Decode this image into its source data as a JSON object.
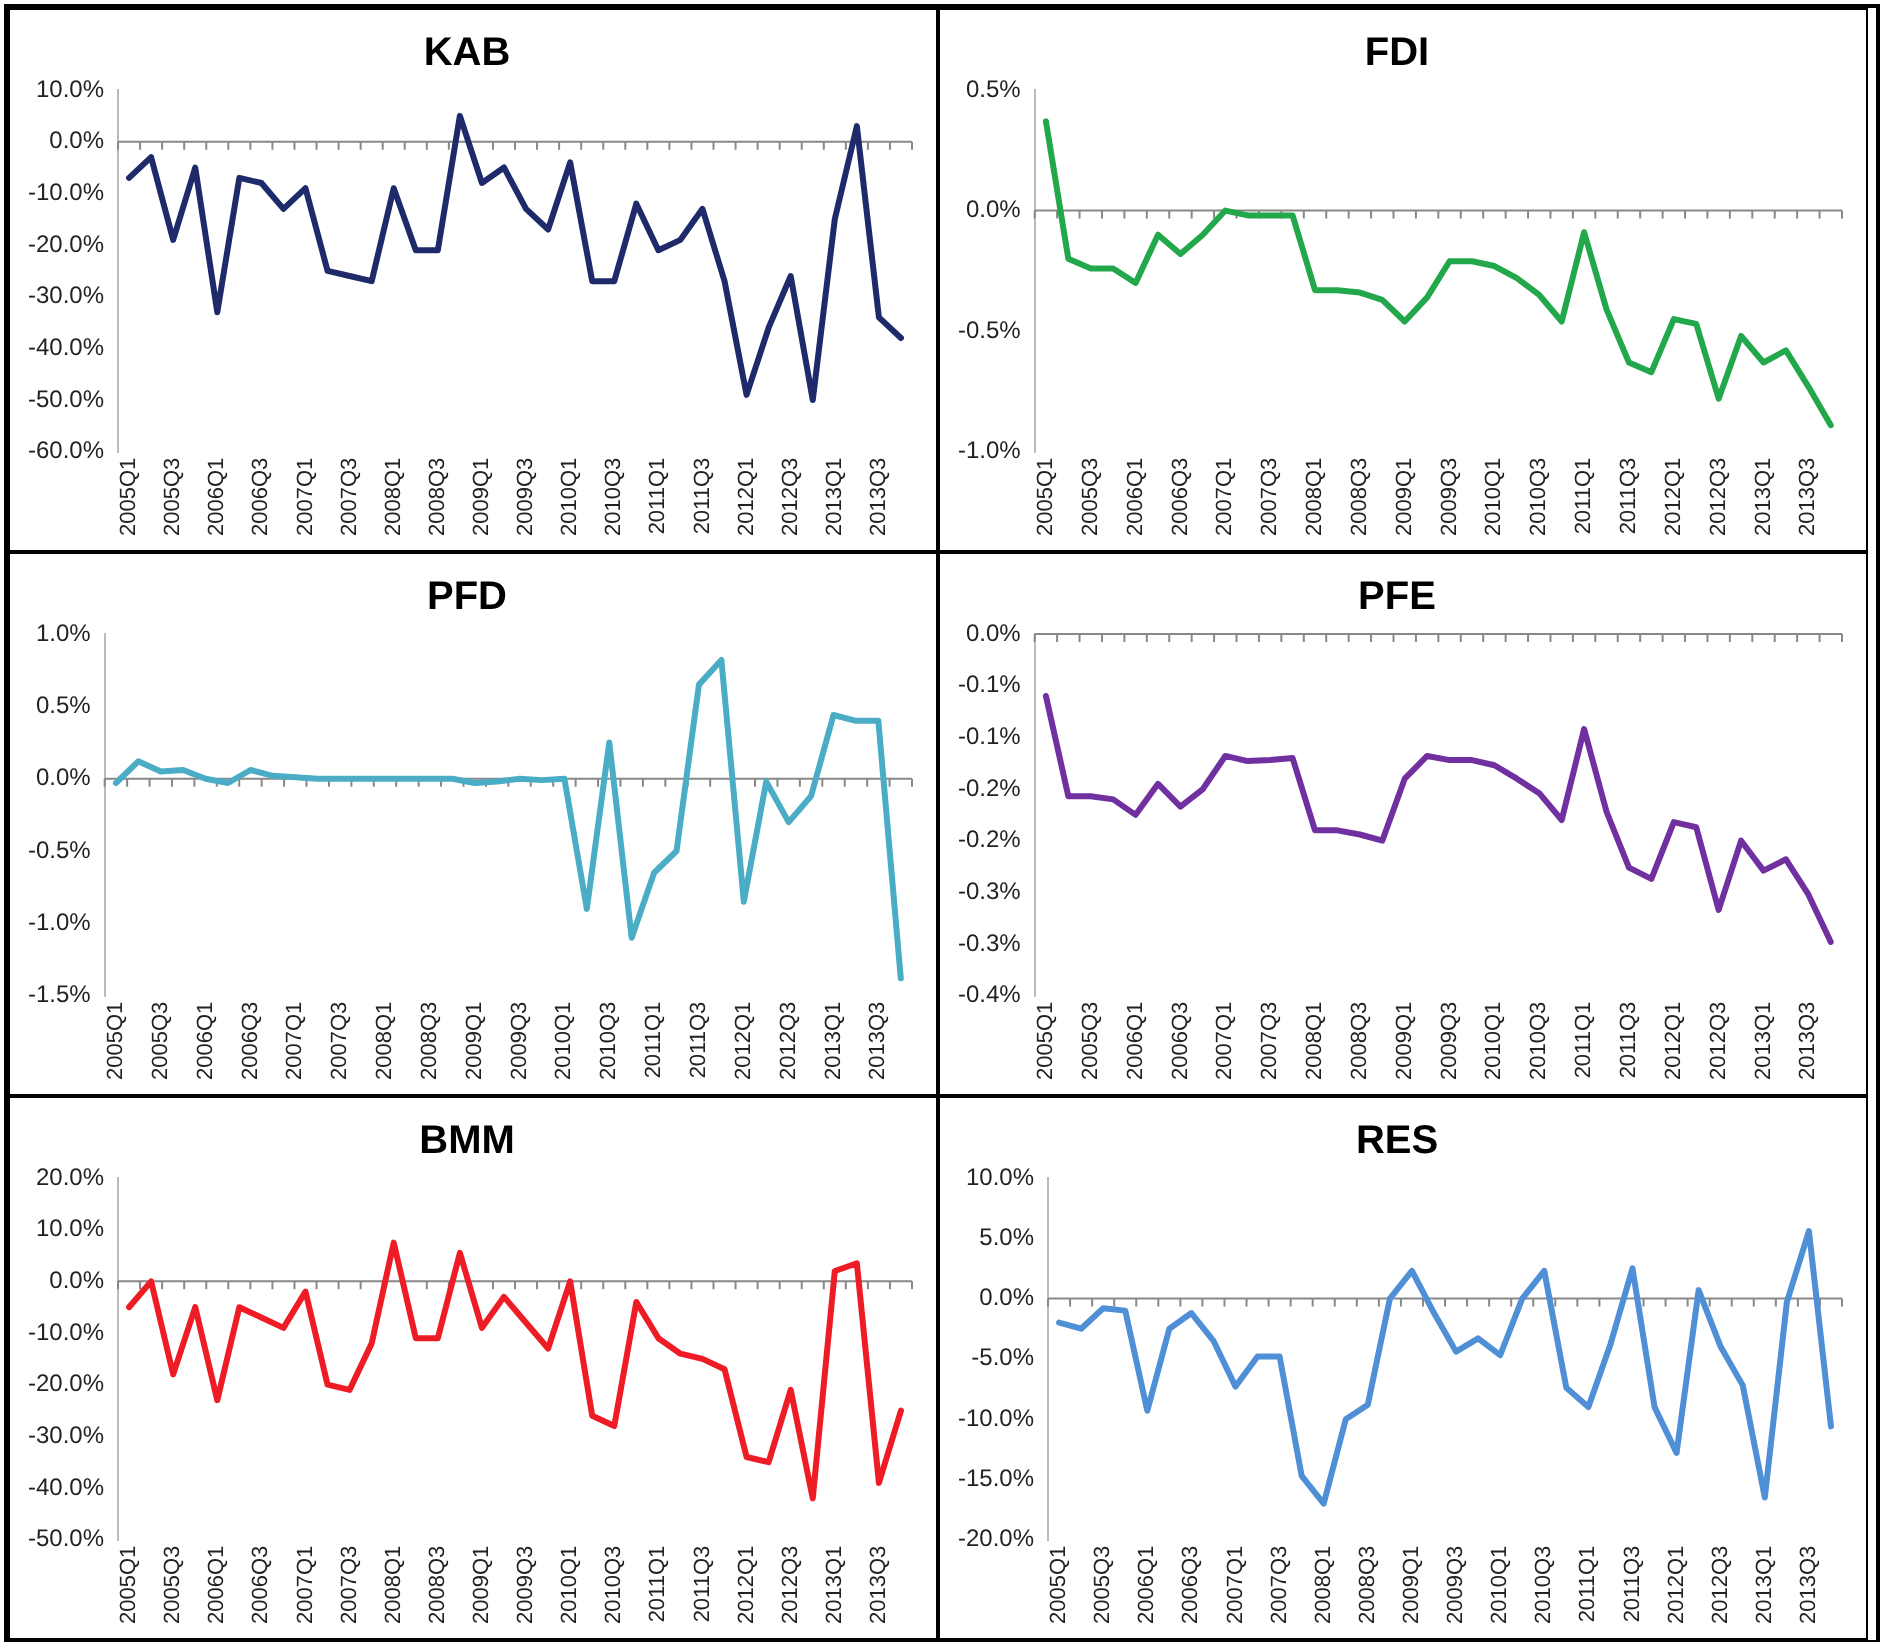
{
  "chart_data": [
    {
      "type": "line",
      "title": "KAB",
      "categories": [
        "2005Q1",
        null,
        "2005Q3",
        null,
        "2006Q1",
        null,
        "2006Q3",
        null,
        "2007Q1",
        null,
        "2007Q3",
        null,
        "2008Q1",
        null,
        "2008Q3",
        null,
        "2009Q1",
        null,
        "2009Q3",
        null,
        "2010Q1",
        null,
        "2010Q3",
        null,
        "2011Q1",
        null,
        "2011Q3",
        null,
        "2012Q1",
        null,
        "2012Q3",
        null,
        "2013Q1",
        null,
        "2013Q3",
        null
      ],
      "series": [
        {
          "color": "#1f2a6b",
          "values": [
            -7,
            -3,
            -19,
            -5,
            -33,
            -7,
            -8,
            -13,
            -9,
            -25,
            -26,
            -27,
            -9,
            -21,
            -21,
            5,
            -8,
            -5,
            -13,
            -17,
            -4,
            -27,
            -27,
            -12,
            -21,
            -19,
            -13,
            -27,
            -49,
            -36,
            -26,
            -50,
            -15,
            3,
            -34,
            -38
          ]
        }
      ],
      "ref_lines": [
        {
          "axis": "y",
          "value": 0,
          "color": "#888888"
        }
      ],
      "ylim": [
        -60,
        10
      ],
      "yticks": [
        {
          "value": -60,
          "label": "-60.0%"
        },
        {
          "value": -50,
          "label": "-50.0%"
        },
        {
          "value": -40,
          "label": "-40.0%"
        },
        {
          "value": -30,
          "label": "-30.0%"
        },
        {
          "value": -20,
          "label": "-20.0%"
        },
        {
          "value": -10,
          "label": "-10.0%"
        },
        {
          "value": 0,
          "label": "0.0%"
        },
        {
          "value": 10,
          "label": "10.0%"
        }
      ],
      "grid": false,
      "legend": false,
      "marker": "none"
    },
    {
      "type": "line",
      "title": "FDI",
      "categories": [
        "2005Q1",
        null,
        "2005Q3",
        null,
        "2006Q1",
        null,
        "2006Q3",
        null,
        "2007Q1",
        null,
        "2007Q3",
        null,
        "2008Q1",
        null,
        "2008Q3",
        null,
        "2009Q1",
        null,
        "2009Q3",
        null,
        "2010Q1",
        null,
        "2010Q3",
        null,
        "2011Q1",
        null,
        "2011Q3",
        null,
        "2012Q1",
        null,
        "2012Q3",
        null,
        "2013Q1",
        null,
        "2013Q3",
        null
      ],
      "series": [
        {
          "color": "#22a84a",
          "values": [
            0.37,
            -0.2,
            -0.24,
            -0.24,
            -0.3,
            -0.1,
            -0.18,
            -0.1,
            0,
            -0.02,
            -0.02,
            -0.02,
            -0.33,
            -0.33,
            -0.34,
            -0.37,
            -0.46,
            -0.36,
            -0.21,
            -0.21,
            -0.23,
            -0.28,
            -0.35,
            -0.46,
            -0.09,
            -0.41,
            -0.63,
            -0.67,
            -0.45,
            -0.47,
            -0.78,
            -0.52,
            -0.63,
            -0.58,
            -0.73,
            -0.89
          ]
        }
      ],
      "ref_lines": [
        {
          "axis": "y",
          "value": 0,
          "color": "#888888"
        }
      ],
      "ylim": [
        -1,
        0.5
      ],
      "yticks": [
        {
          "value": -1,
          "label": "-1.0%"
        },
        {
          "value": -0.5,
          "label": "-0.5%"
        },
        {
          "value": 0,
          "label": "0.0%"
        },
        {
          "value": 0.5,
          "label": "0.5%"
        }
      ],
      "grid": false,
      "legend": false,
      "marker": "none"
    },
    {
      "type": "line",
      "title": "PFD",
      "categories": [
        "2005Q1",
        null,
        "2005Q3",
        null,
        "2006Q1",
        null,
        "2006Q3",
        null,
        "2007Q1",
        null,
        "2007Q3",
        null,
        "2008Q1",
        null,
        "2008Q3",
        null,
        "2009Q1",
        null,
        "2009Q3",
        null,
        "2010Q1",
        null,
        "2010Q3",
        null,
        "2011Q1",
        null,
        "2011Q3",
        null,
        "2012Q1",
        null,
        "2012Q3",
        null,
        "2013Q1",
        null,
        "2013Q3",
        null
      ],
      "series": [
        {
          "color": "#4bacc6",
          "values": [
            -0.03,
            0.12,
            0.05,
            0.06,
            0,
            -0.03,
            0.06,
            0.02,
            0.01,
            0,
            0,
            0,
            0,
            0,
            0,
            0,
            -0.03,
            -0.02,
            0,
            -0.01,
            0,
            -0.9,
            0.25,
            -1.1,
            -0.65,
            -0.5,
            0.65,
            0.82,
            -0.85,
            -0.02,
            -0.3,
            -0.12,
            0.44,
            0.4,
            0.4,
            -1.38
          ]
        }
      ],
      "ref_lines": [
        {
          "axis": "y",
          "value": 0,
          "color": "#888888"
        }
      ],
      "ylim": [
        -1.5,
        1
      ],
      "yticks": [
        {
          "value": -1.5,
          "label": "-1.5%"
        },
        {
          "value": -1,
          "label": "-1.0%"
        },
        {
          "value": -0.5,
          "label": "-0.5%"
        },
        {
          "value": 0,
          "label": "0.0%"
        },
        {
          "value": 0.5,
          "label": "0.5%"
        },
        {
          "value": 1,
          "label": "1.0%"
        }
      ],
      "grid": false,
      "legend": false,
      "marker": "none"
    },
    {
      "type": "line",
      "title": "PFE",
      "categories": [
        "2005Q1",
        null,
        "2005Q3",
        null,
        "2006Q1",
        null,
        "2006Q3",
        null,
        "2007Q1",
        null,
        "2007Q3",
        null,
        "2008Q1",
        null,
        "2008Q3",
        null,
        "2009Q1",
        null,
        "2009Q3",
        null,
        "2010Q1",
        null,
        "2010Q3",
        null,
        "2011Q1",
        null,
        "2011Q3",
        null,
        "2012Q1",
        null,
        "2012Q3",
        null,
        "2013Q1",
        null,
        "2013Q3",
        null
      ],
      "series": [
        {
          "color": "#7030a0",
          "values": [
            -0.06,
            -0.157,
            -0.157,
            -0.16,
            -0.175,
            -0.145,
            -0.167,
            -0.15,
            -0.118,
            -0.123,
            -0.122,
            -0.12,
            -0.19,
            -0.19,
            -0.194,
            -0.2,
            -0.14,
            -0.118,
            -0.122,
            -0.122,
            -0.127,
            -0.14,
            -0.154,
            -0.18,
            -0.092,
            -0.172,
            -0.226,
            -0.237,
            -0.182,
            -0.187,
            -0.267,
            -0.2,
            -0.229,
            -0.218,
            -0.252,
            -0.298
          ]
        }
      ],
      "ref_lines": [
        {
          "axis": "y",
          "value": 0,
          "color": "#888888"
        }
      ],
      "ylim": [
        -0.35,
        0
      ],
      "yticks": [
        {
          "value": -0.35,
          "label": "-0.4%"
        },
        {
          "value": -0.3,
          "label": "-0.3%"
        },
        {
          "value": -0.25,
          "label": "-0.3%"
        },
        {
          "value": -0.2,
          "label": "-0.2%"
        },
        {
          "value": -0.15,
          "label": "-0.2%"
        },
        {
          "value": -0.1,
          "label": "-0.1%"
        },
        {
          "value": -0.05,
          "label": "-0.1%"
        },
        {
          "value": 0,
          "label": "0.0%"
        }
      ],
      "grid": false,
      "legend": false,
      "marker": "none"
    },
    {
      "type": "line",
      "title": "BMM",
      "categories": [
        "2005Q1",
        null,
        "2005Q3",
        null,
        "2006Q1",
        null,
        "2006Q3",
        null,
        "2007Q1",
        null,
        "2007Q3",
        null,
        "2008Q1",
        null,
        "2008Q3",
        null,
        "2009Q1",
        null,
        "2009Q3",
        null,
        "2010Q1",
        null,
        "2010Q3",
        null,
        "2011Q1",
        null,
        "2011Q3",
        null,
        "2012Q1",
        null,
        "2012Q3",
        null,
        "2013Q1",
        null,
        "2013Q3",
        null
      ],
      "series": [
        {
          "color": "#ee1c24",
          "values": [
            -5,
            0,
            -18,
            -5,
            -23,
            -5,
            -7,
            -9,
            -2,
            -20,
            -21,
            -12,
            7.5,
            -11,
            -11,
            5.5,
            -9,
            -3,
            -8,
            -13,
            0,
            -26,
            -28,
            -4,
            -11,
            -14,
            -15,
            -17,
            -34,
            -35,
            -21,
            -42,
            2,
            3.5,
            -39,
            -25
          ]
        }
      ],
      "ref_lines": [
        {
          "axis": "y",
          "value": 0,
          "color": "#888888"
        }
      ],
      "ylim": [
        -50,
        20
      ],
      "yticks": [
        {
          "value": -50,
          "label": "-50.0%"
        },
        {
          "value": -40,
          "label": "-40.0%"
        },
        {
          "value": -30,
          "label": "-30.0%"
        },
        {
          "value": -20,
          "label": "-20.0%"
        },
        {
          "value": -10,
          "label": "-10.0%"
        },
        {
          "value": 0,
          "label": "0.0%"
        },
        {
          "value": 10,
          "label": "10.0%"
        },
        {
          "value": 20,
          "label": "20.0%"
        }
      ],
      "grid": false,
      "legend": false,
      "marker": "none"
    },
    {
      "type": "line",
      "title": "RES",
      "categories": [
        "2005Q1",
        null,
        "2005Q3",
        null,
        "2006Q1",
        null,
        "2006Q3",
        null,
        "2007Q1",
        null,
        "2007Q3",
        null,
        "2008Q1",
        null,
        "2008Q3",
        null,
        "2009Q1",
        null,
        "2009Q3",
        null,
        "2010Q1",
        null,
        "2010Q3",
        null,
        "2011Q1",
        null,
        "2011Q3",
        null,
        "2012Q1",
        null,
        "2012Q3",
        null,
        "2013Q1",
        null,
        "2013Q3",
        null
      ],
      "series": [
        {
          "color": "#4f8fd6",
          "values": [
            -2,
            -2.5,
            -0.8,
            -1,
            -9.3,
            -2.5,
            -1.2,
            -3.5,
            -7.3,
            -4.8,
            -4.8,
            -14.7,
            -17,
            -10,
            -8.8,
            0,
            2.3,
            -1.2,
            -4.4,
            -3.3,
            -4.7,
            0,
            2.3,
            -7.4,
            -9,
            -3.8,
            2.5,
            -9,
            -12.8,
            0.7,
            -4,
            -7.2,
            -16.5,
            -0.3,
            5.6,
            -10.6
          ]
        }
      ],
      "ref_lines": [
        {
          "axis": "y",
          "value": 0,
          "color": "#888888"
        }
      ],
      "ylim": [
        -20,
        10
      ],
      "yticks": [
        {
          "value": -20,
          "label": "-20.0%"
        },
        {
          "value": -15,
          "label": "-15.0%"
        },
        {
          "value": -10,
          "label": "-10.0%"
        },
        {
          "value": -5,
          "label": "-5.0%"
        },
        {
          "value": 0,
          "label": "0.0%"
        },
        {
          "value": 5,
          "label": "5.0%"
        },
        {
          "value": 10,
          "label": "10.0%"
        }
      ],
      "grid": false,
      "legend": false,
      "marker": "none"
    }
  ]
}
